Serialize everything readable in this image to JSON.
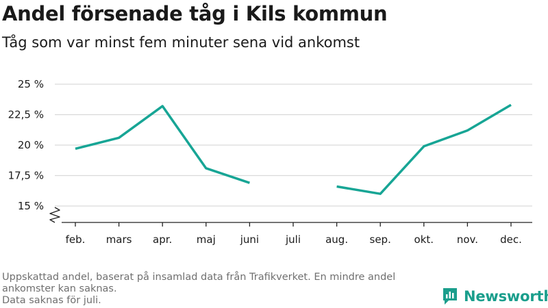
{
  "header": {
    "title": "Andel försenade tåg i Kils kommun",
    "subtitle": "Tåg som var minst fem minuter sena vid ankomst"
  },
  "footnote": {
    "line1": "Uppskattad andel, baserat på insamlad data från Trafikverket. En mindre andel ankomster kan saknas.",
    "line2": "Data saknas för juli."
  },
  "brand": {
    "name": "Newsworthy",
    "color": "#1a9e8c"
  },
  "colors": {
    "line": "#17a595",
    "grid": "#d9d9d9",
    "axis": "#222222"
  },
  "chart_data": {
    "type": "line",
    "categories": [
      "feb.",
      "mars",
      "apr.",
      "maj",
      "juni",
      "juli",
      "aug.",
      "sep.",
      "okt.",
      "nov.",
      "dec."
    ],
    "series": [
      {
        "values": [
          19.7,
          20.6,
          23.2,
          18.1,
          16.9,
          null,
          16.6,
          16.0,
          19.9,
          21.2,
          23.3
        ]
      }
    ],
    "y_ticks": [
      15,
      17.5,
      20,
      22.5,
      25
    ],
    "y_tick_labels": [
      "15 %",
      "17,5 %",
      "20 %",
      "22,5 %",
      "25 %"
    ],
    "ylim": [
      15,
      25
    ],
    "y_axis_break": true,
    "grid": true,
    "xlabel": "",
    "ylabel": ""
  }
}
